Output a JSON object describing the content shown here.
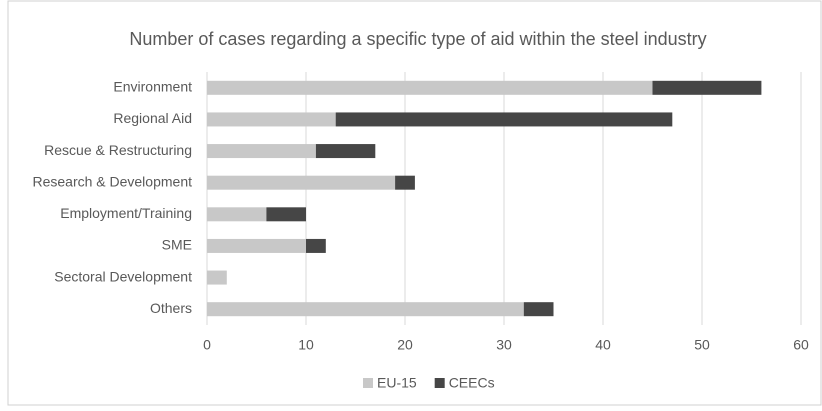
{
  "chart_data": {
    "type": "stacked_barh",
    "title": "Number of cases regarding a specific type of aid within the steel industry",
    "categories": [
      "Environment",
      "Regional Aid",
      "Rescue & Restructuring",
      "Research & Development",
      "Employment/Training",
      "SME",
      "Sectoral Development",
      "Others"
    ],
    "series": [
      {
        "name": "EU-15",
        "color": "#c8c8c8",
        "values": [
          45,
          13,
          11,
          19,
          6,
          10,
          2,
          32
        ]
      },
      {
        "name": "CEECs",
        "color": "#464646",
        "values": [
          11,
          34,
          6,
          2,
          4,
          2,
          0,
          3
        ]
      }
    ],
    "xlim": [
      0,
      60
    ],
    "xticks": [
      0,
      10,
      20,
      30,
      40,
      50,
      60
    ],
    "grid": true,
    "legend": "bottom"
  }
}
